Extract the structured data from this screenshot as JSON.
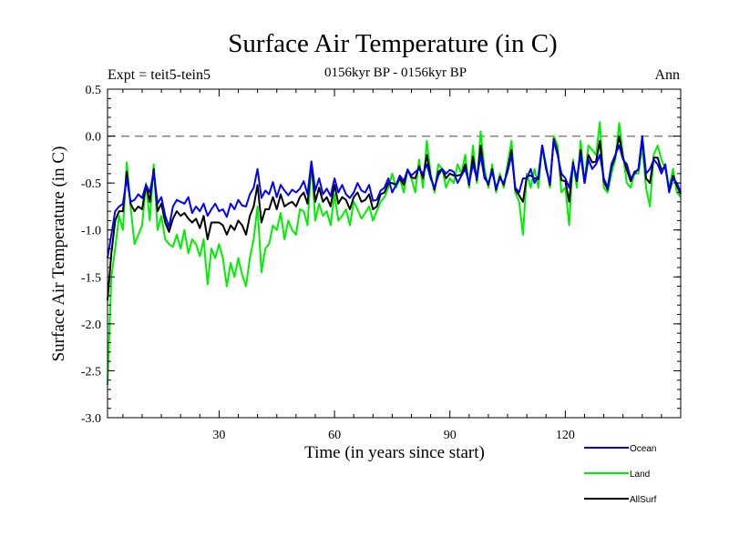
{
  "chart_data": {
    "type": "line",
    "title": "Surface Air Temperature (in C)",
    "subtitle": "0156kyr BP - 0156kyr BP",
    "expt_label": "Expt = teit5-tein5",
    "period_label": "Ann",
    "xlabel": "Time (in years since start)",
    "ylabel": "Surface Air Temperature (in C)",
    "xlim": [
      1,
      150
    ],
    "ylim": [
      -3.0,
      0.5
    ],
    "x_ticks": [
      30,
      60,
      90,
      120
    ],
    "x_tick_labels": [
      "30",
      "60",
      "90",
      "120"
    ],
    "y_ticks": [
      0.5,
      0.0,
      -0.5,
      -1.0,
      -1.5,
      -2.0,
      -2.5,
      -3.0
    ],
    "y_tick_labels": [
      "0.5",
      "0.0",
      "-0.5",
      "-1.0",
      "-1.5",
      "-2.0",
      "-2.5",
      "-3.0"
    ],
    "reference_line": 0.0,
    "legend_position": "bottom-right, outside plot",
    "series": [
      {
        "name": "Ocean",
        "color": "#0000ff",
        "values": [
          -1.3,
          -1.05,
          -0.8,
          -0.75,
          -0.72,
          -0.45,
          -0.7,
          -0.68,
          -0.62,
          -0.66,
          -0.52,
          -0.6,
          -0.38,
          -0.72,
          -0.65,
          -0.85,
          -0.97,
          -0.75,
          -0.68,
          -0.7,
          -0.72,
          -0.65,
          -0.82,
          -0.75,
          -0.8,
          -0.72,
          -0.85,
          -0.78,
          -0.72,
          -0.8,
          -0.78,
          -0.86,
          -0.72,
          -0.78,
          -0.68,
          -0.74,
          -0.75,
          -0.62,
          -0.55,
          -0.35,
          -0.66,
          -0.58,
          -0.62,
          -0.49,
          -0.65,
          -0.52,
          -0.58,
          -0.63,
          -0.57,
          -0.6,
          -0.56,
          -0.48,
          -0.62,
          -0.27,
          -0.58,
          -0.45,
          -0.62,
          -0.56,
          -0.64,
          -0.45,
          -0.6,
          -0.52,
          -0.62,
          -0.66,
          -0.6,
          -0.5,
          -0.58,
          -0.6,
          -0.52,
          -0.69,
          -0.68,
          -0.58,
          -0.55,
          -0.45,
          -0.6,
          -0.52,
          -0.42,
          -0.48,
          -0.36,
          -0.42,
          -0.38,
          -0.35,
          -0.4,
          -0.3,
          -0.45,
          -0.55,
          -0.42,
          -0.35,
          -0.4,
          -0.36,
          -0.38,
          -0.5,
          -0.42,
          -0.35,
          -0.5,
          -0.3,
          -0.45,
          -0.2,
          -0.45,
          -0.5,
          -0.38,
          -0.55,
          -0.45,
          -0.5,
          -0.38,
          -0.2,
          -0.55,
          -0.6,
          -0.45,
          -0.45,
          -0.35,
          -0.5,
          -0.42,
          -0.1,
          -0.35,
          -0.5,
          -0.05,
          -0.2,
          -0.4,
          -0.45,
          -0.55,
          -0.3,
          -0.45,
          -0.2,
          -0.5,
          -0.25,
          -0.35,
          -0.3,
          -0.2,
          -0.45,
          -0.55,
          -0.3,
          -0.2,
          -0.1,
          -0.25,
          -0.3,
          -0.45,
          -0.4,
          -0.35,
          0.0,
          -0.4,
          -0.35,
          -0.25,
          -0.3,
          -0.4,
          -0.3,
          -0.6,
          -0.45,
          -0.5,
          -0.6
        ]
      },
      {
        "name": "Land",
        "color": "#00ee00",
        "values": [
          -2.65,
          -1.5,
          -1.2,
          -0.85,
          -1.0,
          -0.28,
          -0.75,
          -1.15,
          -1.05,
          -0.95,
          -0.5,
          -0.9,
          -0.3,
          -1.0,
          -0.85,
          -1.1,
          -1.15,
          -1.18,
          -1.05,
          -1.2,
          -1.0,
          -1.25,
          -1.1,
          -1.15,
          -1.28,
          -1.1,
          -1.58,
          -1.2,
          -1.3,
          -1.15,
          -1.3,
          -1.6,
          -1.35,
          -1.5,
          -1.3,
          -1.48,
          -1.6,
          -1.3,
          -1.1,
          -0.75,
          -1.45,
          -1.2,
          -1.15,
          -0.95,
          -1.0,
          -0.82,
          -1.1,
          -0.9,
          -1.0,
          -1.05,
          -0.78,
          -0.8,
          -0.95,
          -0.28,
          -0.9,
          -0.72,
          -0.85,
          -0.8,
          -0.95,
          -0.62,
          -0.9,
          -0.85,
          -0.78,
          -0.95,
          -0.7,
          -0.78,
          -0.88,
          -0.82,
          -0.75,
          -0.9,
          -0.8,
          -0.7,
          -0.65,
          -0.55,
          -0.4,
          -0.55,
          -0.45,
          -0.6,
          -0.35,
          -0.45,
          -0.6,
          -0.25,
          -0.55,
          -0.05,
          -0.4,
          -0.6,
          -0.3,
          -0.35,
          -0.55,
          -0.45,
          -0.5,
          -0.3,
          -0.4,
          -0.2,
          -0.55,
          -0.1,
          -0.5,
          0.05,
          -0.35,
          -0.55,
          -0.3,
          -0.6,
          -0.4,
          -0.55,
          -0.3,
          -0.05,
          -0.6,
          -0.7,
          -1.05,
          -0.4,
          -0.55,
          -0.35,
          -0.55,
          -0.1,
          -0.3,
          -0.55,
          0.0,
          -0.1,
          -0.6,
          -0.55,
          -0.95,
          -0.25,
          -0.55,
          -0.05,
          -0.5,
          -0.1,
          -0.15,
          -0.2,
          0.15,
          -0.55,
          -0.6,
          -0.4,
          -0.25,
          0.14,
          -0.2,
          -0.5,
          -0.55,
          -0.4,
          -0.4,
          -0.1,
          -0.55,
          -0.75,
          -0.2,
          -0.1,
          -0.25,
          -0.35,
          -0.55,
          -0.35,
          -0.6,
          -0.65
        ]
      },
      {
        "name": "AllSurf",
        "color": "#000000",
        "values": [
          -1.75,
          -1.25,
          -0.9,
          -0.8,
          -0.8,
          -0.38,
          -0.72,
          -0.8,
          -0.75,
          -0.78,
          -0.52,
          -0.7,
          -0.35,
          -0.8,
          -0.72,
          -0.92,
          -1.02,
          -0.88,
          -0.8,
          -0.85,
          -0.82,
          -0.88,
          -0.92,
          -0.88,
          -0.98,
          -0.85,
          -1.1,
          -0.92,
          -0.92,
          -0.92,
          -0.95,
          -1.05,
          -0.95,
          -1.0,
          -0.9,
          -0.95,
          -1.05,
          -0.85,
          -0.75,
          -0.52,
          -0.92,
          -0.78,
          -0.78,
          -0.65,
          -0.78,
          -0.62,
          -0.75,
          -0.72,
          -0.7,
          -0.75,
          -0.65,
          -0.6,
          -0.72,
          -0.28,
          -0.7,
          -0.55,
          -0.7,
          -0.65,
          -0.75,
          -0.52,
          -0.72,
          -0.65,
          -0.68,
          -0.78,
          -0.65,
          -0.6,
          -0.7,
          -0.68,
          -0.62,
          -0.78,
          -0.75,
          -0.62,
          -0.6,
          -0.5,
          -0.5,
          -0.52,
          -0.45,
          -0.52,
          -0.36,
          -0.44,
          -0.45,
          -0.32,
          -0.45,
          -0.2,
          -0.43,
          -0.57,
          -0.38,
          -0.35,
          -0.45,
          -0.4,
          -0.42,
          -0.42,
          -0.41,
          -0.3,
          -0.52,
          -0.22,
          -0.47,
          -0.1,
          -0.42,
          -0.52,
          -0.35,
          -0.57,
          -0.43,
          -0.52,
          -0.35,
          -0.15,
          -0.57,
          -0.63,
          -0.7,
          -0.43,
          -0.42,
          -0.45,
          -0.46,
          -0.1,
          -0.33,
          -0.52,
          -0.03,
          -0.17,
          -0.47,
          -0.48,
          -0.7,
          -0.28,
          -0.48,
          -0.15,
          -0.5,
          -0.2,
          -0.28,
          -0.27,
          -0.05,
          -0.48,
          -0.57,
          -0.33,
          -0.22,
          0.0,
          -0.23,
          -0.36,
          -0.48,
          -0.38,
          -0.36,
          -0.03,
          -0.45,
          -0.5,
          -0.23,
          -0.23,
          -0.36,
          -0.32,
          -0.58,
          -0.42,
          -0.53,
          -0.62
        ]
      }
    ]
  }
}
